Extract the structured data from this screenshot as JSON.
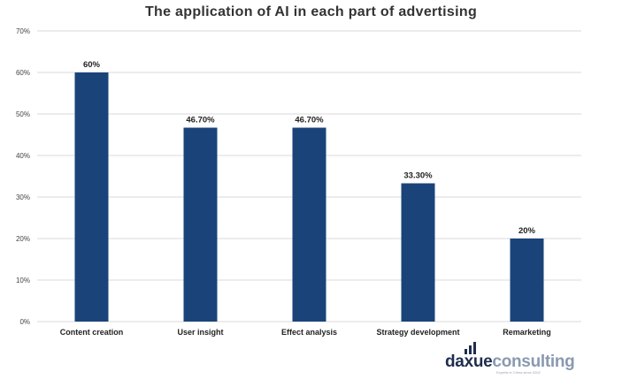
{
  "chart_data": {
    "type": "bar",
    "title": "The application of AI in each part of advertising",
    "categories": [
      "Content creation",
      "User insight",
      "Effect analysis",
      "Strategy development",
      "Remarketing"
    ],
    "values": [
      60,
      46.7,
      46.7,
      33.3,
      20
    ],
    "value_labels": [
      "60%",
      "46.70%",
      "46.70%",
      "33.30%",
      "20%"
    ],
    "y_ticks": [
      0,
      10,
      20,
      30,
      40,
      50,
      60,
      70
    ],
    "y_tick_labels": [
      "0%",
      "10%",
      "20%",
      "30%",
      "40%",
      "50%",
      "60%",
      "70%"
    ],
    "ylim": [
      0,
      70
    ],
    "grid": true,
    "bar_color": "#1a437a",
    "grid_color": "#d9d9d9"
  },
  "logo": {
    "part1": "daxue",
    "part2": "consulting",
    "tagline": "Experts in China since 2002"
  }
}
